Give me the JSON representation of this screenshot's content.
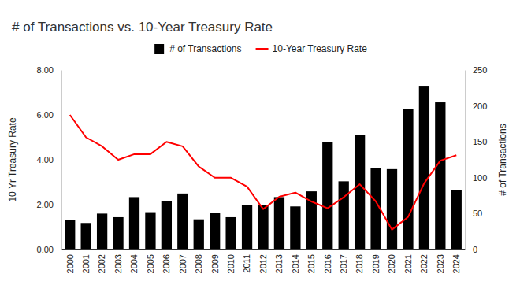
{
  "chart_data": {
    "type": "bar",
    "title": "# of Transactions vs. 10-Year Treasury Rate",
    "categories": [
      "2000",
      "2001",
      "2002",
      "2003",
      "2004",
      "2005",
      "2006",
      "2007",
      "2008",
      "2009",
      "2010",
      "2011",
      "2012",
      "2013",
      "2014",
      "2015",
      "2016",
      "2017",
      "2018",
      "2019",
      "2020",
      "2021",
      "2022",
      "2023",
      "2024"
    ],
    "series": [
      {
        "name": "# of Transactions",
        "type": "bar",
        "color": "#000000",
        "axis": "y2",
        "values": [
          41,
          37,
          50,
          45,
          73,
          52,
          67,
          78,
          42,
          51,
          45,
          62,
          62,
          73,
          60,
          81,
          150,
          95,
          160,
          114,
          112,
          196,
          228,
          205,
          83
        ]
      },
      {
        "name": "10-Year Treasury Rate",
        "type": "line",
        "color": "#ff0000",
        "values": [
          6.0,
          5.0,
          4.6,
          4.0,
          4.25,
          4.25,
          4.8,
          4.6,
          3.7,
          3.2,
          3.2,
          2.8,
          1.8,
          2.35,
          2.54,
          2.14,
          1.84,
          2.33,
          2.91,
          2.14,
          0.89,
          1.45,
          2.95,
          3.96,
          4.2
        ]
      }
    ],
    "ylabel": "10 Yr Treasury Rate",
    "y2label": "# of Transactions",
    "ylim": [
      0,
      8
    ],
    "yticks": [
      {
        "value": 0,
        "label": "0.00"
      },
      {
        "value": 2,
        "label": "2.00"
      },
      {
        "value": 4,
        "label": "4.00"
      },
      {
        "value": 6,
        "label": "6.00"
      },
      {
        "value": 8,
        "label": "8.00"
      }
    ],
    "y2lim": [
      0,
      250
    ],
    "y2ticks": [
      0,
      50,
      100,
      150,
      200,
      250
    ],
    "legend": "top"
  }
}
